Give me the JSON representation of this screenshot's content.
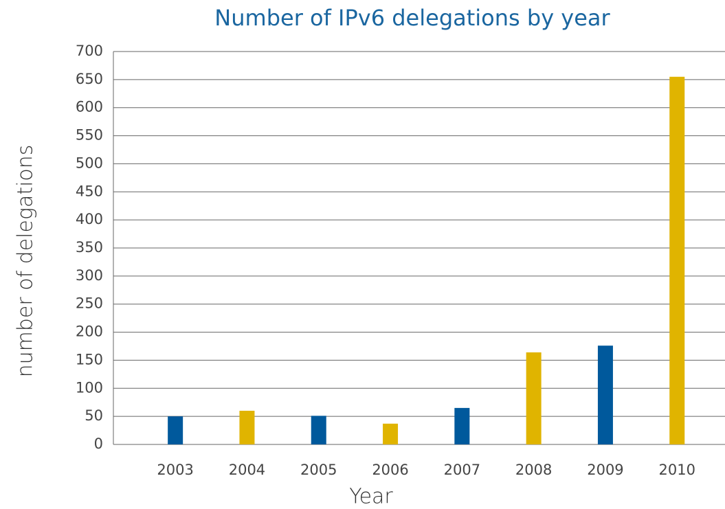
{
  "chart_data": {
    "type": "bar",
    "title": "Number of IPv6 delegations by year",
    "x_label": "Year",
    "y_label": "number of delegations",
    "categories": [
      "2003",
      "2004",
      "2005",
      "2006",
      "2007",
      "2008",
      "2009",
      "2010"
    ],
    "values": [
      50,
      60,
      51,
      37,
      65,
      164,
      176,
      655
    ],
    "colors": [
      "#00599c",
      "#e0b400",
      "#00599c",
      "#e0b400",
      "#00599c",
      "#e0b400",
      "#00599c",
      "#e0b400"
    ],
    "ylim": [
      0,
      700
    ],
    "yticks": [
      0,
      50,
      100,
      150,
      200,
      250,
      300,
      350,
      400,
      450,
      500,
      550,
      600,
      650,
      700
    ],
    "grid": true
  }
}
